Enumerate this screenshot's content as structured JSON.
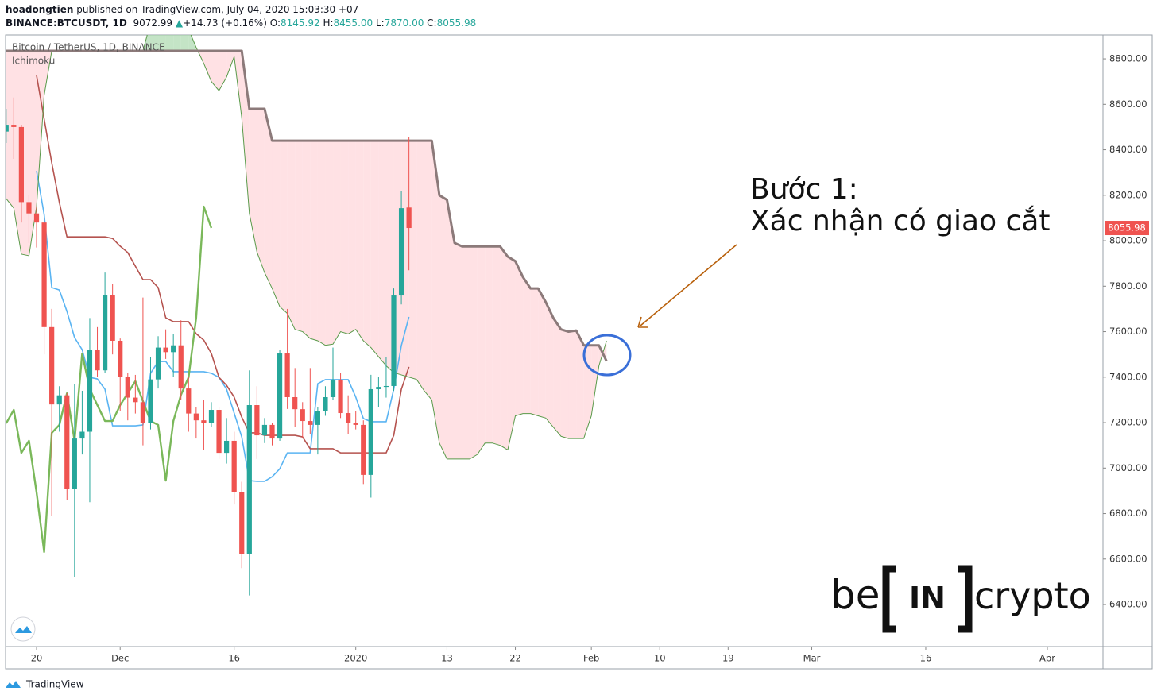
{
  "header": {
    "author": "hoadongtien",
    "published": "published on TradingView.com, July 04, 2020 15:03:30 +07",
    "symbol": "BINANCE:BTCUSDT, 1D",
    "price": "9072.99",
    "arrow": "▲",
    "change": "+14.73 (+0.16%)",
    "o_label": "O:",
    "o": "8145.92",
    "h_label": "H:",
    "h": "8455.00",
    "l_label": "L:",
    "l": "7870.00",
    "c_label": "C:",
    "c": "8055.98"
  },
  "chart_data": {
    "type": "candlestick",
    "title": "Bitcoin / TetherUS, 1D, BINANCE",
    "indicator": "Ichimoku",
    "annotations": [
      "Bước 1:",
      "Xác nhận có giao cắt"
    ],
    "x": [
      -4,
      -3,
      -2,
      -1,
      0,
      1,
      2,
      3,
      4,
      5,
      6,
      7,
      8,
      9,
      10,
      11,
      12,
      13,
      14,
      15,
      16,
      17,
      18,
      19,
      20,
      21,
      22,
      23,
      24,
      25,
      26,
      27,
      28,
      29,
      30,
      31,
      32,
      33,
      34,
      35,
      36,
      37,
      38,
      39,
      40,
      41,
      42,
      43,
      44,
      45,
      46,
      47,
      48,
      49,
      50,
      51,
      52,
      53,
      54,
      55,
      56,
      57,
      58,
      59,
      60,
      61,
      62,
      63,
      64,
      65,
      66,
      67,
      68,
      69,
      70,
      71,
      72,
      73,
      74,
      75
    ],
    "xlim": [
      -4.08,
      140.32
    ],
    "xticks": [
      {
        "value": 0,
        "label": "20"
      },
      {
        "value": 11,
        "label": "Dec"
      },
      {
        "value": 26,
        "label": "16"
      },
      {
        "value": 42,
        "label": "2020"
      },
      {
        "value": 54,
        "label": "13"
      },
      {
        "value": 63,
        "label": "22"
      },
      {
        "value": 73,
        "label": "Feb"
      },
      {
        "value": 82,
        "label": "10"
      },
      {
        "value": 91,
        "label": "19"
      },
      {
        "value": 102,
        "label": "Mar"
      },
      {
        "value": 117,
        "label": "16"
      },
      {
        "value": 133,
        "label": "Apr"
      }
    ],
    "ylim": [
      6215,
      8905
    ],
    "yticks": [
      {
        "value": 6400,
        "label": "6400.00"
      },
      {
        "value": 6600,
        "label": "6600.00"
      },
      {
        "value": 6800,
        "label": "6800.00"
      },
      {
        "value": 7000,
        "label": "7000.00"
      },
      {
        "value": 7200,
        "label": "7200.00"
      },
      {
        "value": 7400,
        "label": "7400.00"
      },
      {
        "value": 7600,
        "label": "7600.00"
      },
      {
        "value": 7800,
        "label": "7800.00"
      },
      {
        "value": 8000,
        "label": "8000.00"
      },
      {
        "value": 8200,
        "label": "8200.00"
      },
      {
        "value": 8400,
        "label": "8400.00"
      },
      {
        "value": 8600,
        "label": "8600.00"
      },
      {
        "value": 8800,
        "label": "8800.00"
      }
    ],
    "grid": false,
    "up_color": "#26a69a",
    "down_color": "#ef5350",
    "open": [
      8480,
      8510,
      8500,
      8170,
      8120,
      8080,
      7620,
      7280,
      7320,
      6910,
      7130,
      7160,
      7520,
      7430,
      7760,
      7560,
      7400,
      7310,
      7290,
      7200,
      7390,
      7530,
      7510,
      7540,
      7350,
      7240,
      7210,
      7200,
      7256,
      7067,
      7120,
      6893,
      6623,
      7277,
      7144,
      7190,
      7130,
      7504,
      7312,
      7259,
      7207,
      7190,
      7252,
      7312,
      7389,
      7242,
      7197,
      7190,
      6970,
      7347,
      7357,
      7361,
      7759,
      8145.92,
      null,
      null,
      null,
      null,
      null,
      null,
      null,
      null,
      null,
      null,
      null,
      null,
      null,
      null,
      null,
      null,
      null,
      null,
      null,
      null,
      null,
      null,
      null,
      null,
      null,
      null
    ],
    "high": [
      8580,
      8630,
      8510,
      8200,
      8150,
      8100,
      7700,
      7360,
      7330,
      7370,
      7340,
      7660,
      7620,
      7860,
      7810,
      7570,
      7420,
      7410,
      7750,
      7490,
      7580,
      7610,
      7590,
      7650,
      7400,
      7270,
      7300,
      7290,
      7270,
      7220,
      7160,
      6940,
      7430,
      7360,
      7220,
      7200,
      7520,
      7700,
      7440,
      7290,
      7440,
      7270,
      7360,
      7530,
      7420,
      7320,
      7250,
      7210,
      7410,
      7400,
      7490,
      7790,
      8220,
      8455,
      null,
      null,
      null,
      null,
      null,
      null,
      null,
      null,
      null,
      null,
      null,
      null,
      null,
      null,
      null,
      null,
      null,
      null,
      null,
      null,
      null,
      null,
      null,
      null,
      null,
      null
    ],
    "low": [
      8430,
      8360,
      8080,
      7990,
      7970,
      7500,
      6790,
      7160,
      6860,
      6520,
      7060,
      6850,
      7400,
      7420,
      7500,
      7250,
      7210,
      7240,
      7100,
      7170,
      7350,
      7480,
      7400,
      7300,
      7160,
      7130,
      7080,
      7180,
      7040,
      7020,
      6840,
      6560,
      6440,
      7040,
      7110,
      7100,
      7120,
      7260,
      7180,
      7130,
      7150,
      7060,
      7230,
      7300,
      7220,
      7150,
      7170,
      6930,
      6870,
      7270,
      7310,
      7340,
      7720,
      7870,
      null,
      null,
      null,
      null,
      null,
      null,
      null,
      null,
      null,
      null,
      null,
      null,
      null,
      null,
      null,
      null,
      null,
      null,
      null,
      null,
      null,
      null,
      null,
      null,
      null,
      null
    ],
    "close": [
      8510,
      8500,
      8170,
      8120,
      8080,
      7620,
      7280,
      7320,
      6910,
      7130,
      7160,
      7520,
      7430,
      7760,
      7560,
      7400,
      7310,
      7290,
      7200,
      7390,
      7530,
      7510,
      7540,
      7350,
      7240,
      7210,
      7200,
      7256,
      7067,
      7120,
      6893,
      6623,
      7277,
      7144,
      7190,
      7130,
      7504,
      7312,
      7259,
      7207,
      7190,
      7252,
      7312,
      7389,
      7242,
      7197,
      7190,
      6970,
      7347,
      7357,
      7361,
      7759,
      8143,
      8055.98,
      null,
      null,
      null,
      null,
      null,
      null,
      null,
      null,
      null,
      null,
      null,
      null,
      null,
      null,
      null,
      null,
      null,
      null,
      null,
      null,
      null,
      null,
      null,
      null,
      null,
      null
    ],
    "cloud": {
      "up_color": "rgba(165,214,167,0.65)",
      "down_color": "rgba(255,205,210,0.6)",
      "a": 3,
      "b": 4
    },
    "series": [
      {
        "color": "#5ab4f2",
        "width": 1.6,
        "values": [
          null,
          null,
          null,
          null,
          8307,
          8115,
          7794,
          7783,
          7689,
          7574,
          7521,
          7399,
          7392,
          7347,
          7186,
          7186,
          7186,
          7186,
          7190,
          7417,
          7469,
          7469,
          7424,
          7424,
          7424,
          7424,
          7424,
          7417,
          7399,
          7347,
          7242,
          7137,
          6945,
          6942,
          6942,
          6962,
          6997,
          7067,
          7067,
          7067,
          7067,
          7371,
          7389,
          7389,
          7389,
          7389,
          7312,
          7218,
          7204,
          7204,
          7204,
          7347,
          7539,
          7665,
          null,
          null,
          null,
          null,
          null,
          null,
          null,
          null,
          null,
          null,
          null,
          null,
          null,
          null,
          null,
          null,
          null,
          null,
          null,
          null,
          null,
          null,
          null,
          null,
          null,
          null
        ]
      },
      {
        "color": "#b5534f",
        "width": 1.6,
        "values": [
          null,
          null,
          null,
          null,
          8727,
          8535,
          8342,
          8168,
          8017,
          8017,
          8017,
          8017,
          8017,
          8017,
          8010,
          7976,
          7948,
          7888,
          7829,
          7829,
          7794,
          7661,
          7644,
          7644,
          7644,
          7591,
          7563,
          7504,
          7399,
          7364,
          7312,
          7224,
          7155,
          7155,
          7144,
          7144,
          7144,
          7144,
          7144,
          7137,
          7085,
          7085,
          7085,
          7085,
          7067,
          7067,
          7067,
          7067,
          7067,
          7067,
          7067,
          7144,
          7347,
          7445,
          null,
          null,
          null,
          null,
          null,
          null,
          null,
          null,
          null,
          null,
          null,
          null,
          null,
          null,
          null,
          null,
          null,
          null,
          null,
          null,
          null,
          null,
          null,
          null,
          null,
          null
        ]
      },
      {
        "color": "#7ab85a",
        "width": 2.4,
        "values": [
          7197,
          7256,
          7067,
          7120,
          6893,
          6631,
          7155,
          7190,
          7329,
          7120,
          7504,
          7347,
          7277,
          7207,
          7207,
          7277,
          7329,
          7382,
          7294,
          7207,
          7190,
          6945,
          7207,
          7322,
          7399,
          7661,
          8150,
          8055.98,
          null,
          null,
          null,
          null,
          null,
          null,
          null,
          null,
          null,
          null,
          null,
          null,
          null,
          null,
          null,
          null,
          null,
          null,
          null,
          null,
          null,
          null,
          null,
          null,
          null,
          null,
          null,
          null,
          null,
          null,
          null,
          null,
          null,
          null,
          null,
          null,
          null,
          null,
          null,
          null,
          null,
          null,
          null,
          null,
          null,
          null,
          null,
          null,
          null,
          null,
          null,
          null
        ]
      },
      {
        "color": "#5a9a4a",
        "width": 1,
        "values": [
          8185,
          8143,
          7941,
          7934,
          8150,
          8640,
          8835,
          8835,
          8835,
          8835,
          8835,
          8835,
          8835,
          8835,
          8835,
          8835,
          8835,
          8835,
          8835,
          8960,
          8960,
          8960,
          8960,
          8960,
          8930,
          8850,
          8780,
          8700,
          8660,
          8720,
          8810,
          8540,
          8120,
          7950,
          7860,
          7790,
          7710,
          7680,
          7610,
          7600,
          7570,
          7560,
          7540,
          7545,
          7600,
          7590,
          7610,
          7560,
          7530,
          7490,
          7450,
          7420,
          7410,
          7400,
          7390,
          7340,
          7300,
          7110,
          7040,
          7040,
          7040,
          7040,
          7060,
          7110,
          7110,
          7100,
          7080,
          7230,
          7240,
          7240,
          7230,
          7220,
          7180,
          7140,
          7130,
          7130,
          7130,
          7230,
          7450,
          7560
        ]
      },
      {
        "color": "#8c7a7a",
        "width": 3,
        "values": [
          8835,
          8835,
          8835,
          8835,
          8835,
          8835,
          8835,
          8835,
          8835,
          8835,
          8835,
          8835,
          8835,
          8835,
          8835,
          8835,
          8835,
          8835,
          8835,
          8835,
          8835,
          8835,
          8835,
          8835,
          8835,
          8835,
          8835,
          8835,
          8835,
          8835,
          8835,
          8835,
          8580,
          8580,
          8580,
          8440,
          8440,
          8440,
          8440,
          8440,
          8440,
          8440,
          8440,
          8440,
          8440,
          8440,
          8440,
          8440,
          8440,
          8440,
          8440,
          8440,
          8440,
          8440,
          8440,
          8440,
          8440,
          8200,
          8180,
          7990,
          7975,
          7975,
          7975,
          7975,
          7975,
          7975,
          7930,
          7910,
          7840,
          7790,
          7790,
          7730,
          7660,
          7610,
          7600,
          7605,
          7540,
          7540,
          7540,
          7470
        ]
      }
    ]
  },
  "watermark": [
    "be",
    "IN",
    "crypto"
  ],
  "footer": "TradingView"
}
